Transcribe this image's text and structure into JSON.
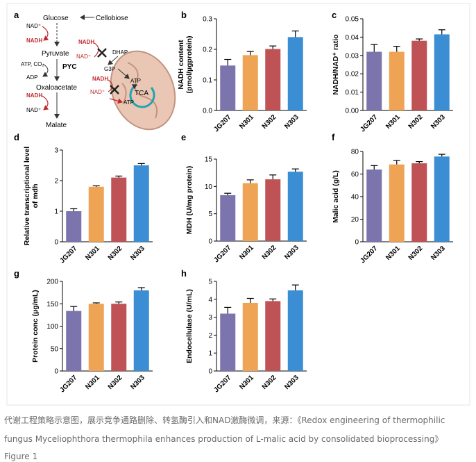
{
  "colors": {
    "JG207": "#7b74ad",
    "N301": "#eea454",
    "N302": "#bf5254",
    "N303": "#3b8ed3",
    "red_text": "#c0272d",
    "mito_fill": "#e9c7b4",
    "mito_stroke": "#c39380",
    "cycle_teal": "#22a3b2"
  },
  "schematic": {
    "panel_letter": "a",
    "glucose": "Glucose",
    "cellobiose": "Cellobiose",
    "nad_plus_1": "NAD⁺",
    "nadh_1": "NADH",
    "pyruvate": "Pyruvate",
    "atp_co2": "ATP, CO₂",
    "adp": "ADP",
    "pyc": "PYC",
    "oxaloacetate": "Oxaloacetate",
    "nadh_2": "NADH",
    "nad_plus_2": "NAD⁺",
    "malate": "Malate",
    "nadh_3": "NADH",
    "nad_plus_3": "NAD⁺",
    "dhap": "DHAP",
    "g3p": "G3P",
    "nadh_4": "NADH",
    "nad_plus_4": "NAD⁺",
    "atp_1": "ATP",
    "atp_2": "ATP",
    "tca": "TCA"
  },
  "chart_data": [
    {
      "panel": "b",
      "type": "bar",
      "categories": [
        "JG207",
        "N301",
        "N302",
        "N303"
      ],
      "values": [
        0.147,
        0.181,
        0.201,
        0.24
      ],
      "errors": [
        0.02,
        0.012,
        0.01,
        0.02
      ],
      "ylabel": [
        "NADH content",
        "(pmol/µgprotein)"
      ],
      "ylim": [
        0,
        0.3
      ],
      "ticks": [
        "0.0",
        "0.1",
        "0.2",
        "0.3"
      ]
    },
    {
      "panel": "c",
      "type": "bar",
      "categories": [
        "JG207",
        "N301",
        "N302",
        "N303"
      ],
      "values": [
        0.032,
        0.032,
        0.038,
        0.0415
      ],
      "errors": [
        0.004,
        0.003,
        0.001,
        0.0025
      ],
      "ylabel": [
        "NADH/NAD⁺ ratio"
      ],
      "ylim": [
        0,
        0.05
      ],
      "ticks": [
        "0.00",
        "0.01",
        "0.02",
        "0.03",
        "0.04",
        "0.05"
      ]
    },
    {
      "panel": "d",
      "type": "bar",
      "categories": [
        "JG207",
        "N301",
        "N302",
        "N303"
      ],
      "values": [
        1.0,
        1.8,
        2.1,
        2.5
      ],
      "errors": [
        0.08,
        0.03,
        0.05,
        0.06
      ],
      "ylabel": [
        "Relative transcriptional level",
        "of mdh"
      ],
      "ylim": [
        0,
        3
      ],
      "ticks": [
        "0",
        "1",
        "2",
        "3"
      ]
    },
    {
      "panel": "e",
      "type": "bar",
      "categories": [
        "JG207",
        "N301",
        "N302",
        "N303"
      ],
      "values": [
        8.4,
        10.6,
        11.3,
        12.7
      ],
      "errors": [
        0.35,
        0.6,
        0.8,
        0.5
      ],
      "ylabel": [
        "MDH (U/mg protein)"
      ],
      "ylim": [
        0,
        15
      ],
      "ticks": [
        "0",
        "5",
        "10",
        "15"
      ]
    },
    {
      "panel": "f",
      "type": "bar",
      "categories": [
        "JG207",
        "N301",
        "N302",
        "N303"
      ],
      "values": [
        64,
        68.5,
        69.5,
        75.5
      ],
      "errors": [
        3.5,
        3.5,
        1.5,
        2
      ],
      "ylabel": [
        "Malic acid (g/L)"
      ],
      "ylim": [
        0,
        80
      ],
      "ticks": [
        "0",
        "20",
        "40",
        "60",
        "80"
      ]
    },
    {
      "panel": "g",
      "type": "bar",
      "categories": [
        "JG207",
        "N301",
        "N302",
        "N303"
      ],
      "values": [
        134,
        150,
        150,
        180
      ],
      "errors": [
        10,
        2,
        4,
        6
      ],
      "ylabel": [
        "Protein conc (µg/mL)"
      ],
      "ylim": [
        0,
        200
      ],
      "ticks": [
        "0",
        "50",
        "100",
        "150",
        "200"
      ]
    },
    {
      "panel": "h",
      "type": "bar",
      "categories": [
        "JG207",
        "N301",
        "N302",
        "N303"
      ],
      "values": [
        3.2,
        3.8,
        3.9,
        4.5
      ],
      "errors": [
        0.35,
        0.25,
        0.12,
        0.3
      ],
      "ylabel": [
        "Endocellulase (U/mL)"
      ],
      "ylim": [
        0,
        5
      ],
      "ticks": [
        "0",
        "1",
        "2",
        "3",
        "4",
        "5"
      ]
    }
  ],
  "caption": {
    "line1": "代谢工程策略示意图，展示竞争通路删除、转氢酶引入和NAD激酶微调，来源：《Redox engineering of thermophilic",
    "line2": "fungus Myceliophthora thermophila enhances production of L-malic acid by consolidated bioprocessing》",
    "line3": "Figure 1"
  }
}
